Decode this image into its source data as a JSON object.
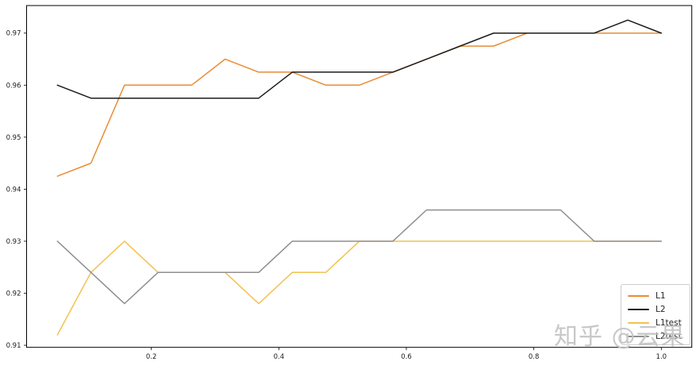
{
  "chart_data": {
    "type": "line",
    "title": "",
    "xlabel": "",
    "ylabel": "",
    "grid": false,
    "legend_position": "lower right",
    "xlim": [
      0.0043,
      1.0478
    ],
    "ylim": [
      0.9096,
      0.9753
    ],
    "x_ticks": [
      0.2,
      0.4,
      0.6,
      0.8,
      1.0
    ],
    "x_tick_labels": [
      "0.2",
      "0.4",
      "0.6",
      "0.8",
      "1.0"
    ],
    "y_ticks": [
      0.91,
      0.92,
      0.93,
      0.94,
      0.95,
      0.96,
      0.97
    ],
    "y_tick_labels": [
      "0.91",
      "0.92",
      "0.93",
      "0.94",
      "0.95",
      "0.96",
      "0.97"
    ],
    "x": [
      0.0526,
      0.1053,
      0.1579,
      0.2105,
      0.2632,
      0.3158,
      0.3684,
      0.4211,
      0.4737,
      0.5263,
      0.5789,
      0.6316,
      0.6842,
      0.7368,
      0.7895,
      0.8421,
      0.8947,
      0.9474,
      1.0
    ],
    "series": [
      {
        "name": "L1",
        "color": "#ea8c33",
        "values": [
          0.9425,
          0.945,
          0.96,
          0.96,
          0.96,
          0.965,
          0.9625,
          0.9625,
          0.96,
          0.96,
          0.9625,
          0.965,
          0.9675,
          0.9675,
          0.97,
          0.97,
          0.97,
          0.97,
          0.97
        ]
      },
      {
        "name": "L2",
        "color": "#1c1c1c",
        "values": [
          0.96,
          0.9575,
          0.9575,
          0.9575,
          0.9575,
          0.9575,
          0.9575,
          0.9625,
          0.9625,
          0.9625,
          0.9625,
          0.965,
          0.9675,
          0.97,
          0.97,
          0.97,
          0.97,
          0.9725,
          0.97
        ]
      },
      {
        "name": "L1test",
        "color": "#f2c24e",
        "values": [
          0.912,
          0.924,
          0.93,
          0.924,
          0.924,
          0.924,
          0.918,
          0.924,
          0.924,
          0.93,
          0.93,
          0.93,
          0.93,
          0.93,
          0.93,
          0.93,
          0.93,
          0.93,
          0.93
        ]
      },
      {
        "name": "L2test",
        "color": "#8f8f8f",
        "values": [
          0.93,
          0.924,
          0.918,
          0.924,
          0.924,
          0.924,
          0.924,
          0.93,
          0.93,
          0.93,
          0.93,
          0.936,
          0.936,
          0.936,
          0.936,
          0.936,
          0.93,
          0.93,
          0.93
        ]
      }
    ]
  },
  "watermark": {
    "text": "知乎 @云果",
    "color": "#c4c4c4"
  }
}
